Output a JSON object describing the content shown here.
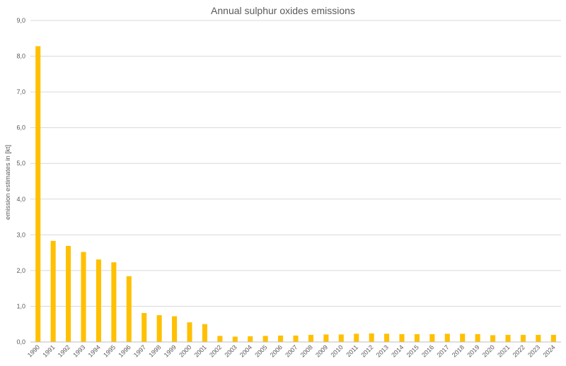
{
  "chart_data": {
    "type": "bar",
    "title": "Annual sulphur oxides emissions",
    "xlabel": "",
    "ylabel": "emission estimates in [kt]",
    "ylim": [
      0,
      9
    ],
    "ytick_step": 1,
    "ytick_labels": [
      "0,0",
      "1,0",
      "2,0",
      "3,0",
      "4,0",
      "5,0",
      "6,0",
      "7,0",
      "8,0",
      "9,0"
    ],
    "grid": true,
    "legend": "none",
    "bar_color": "#FFC000",
    "categories": [
      "1990",
      "1991",
      "1992",
      "1993",
      "1994",
      "1995",
      "1996",
      "1997",
      "1998",
      "1999",
      "2000",
      "2001",
      "2002",
      "2003",
      "2004",
      "2005",
      "2006",
      "2007",
      "2008",
      "2009",
      "2010",
      "2011",
      "2012",
      "2013",
      "2014",
      "2015",
      "2016",
      "2017",
      "2018",
      "2019",
      "2020",
      "2021",
      "2022",
      "2023",
      "2024"
    ],
    "values": [
      8.28,
      2.83,
      2.69,
      2.52,
      2.31,
      2.23,
      1.84,
      0.81,
      0.75,
      0.72,
      0.55,
      0.5,
      0.17,
      0.15,
      0.16,
      0.17,
      0.18,
      0.18,
      0.2,
      0.21,
      0.21,
      0.23,
      0.24,
      0.23,
      0.22,
      0.22,
      0.22,
      0.23,
      0.23,
      0.22,
      0.19,
      0.2,
      0.2,
      0.2,
      0.2
    ]
  }
}
